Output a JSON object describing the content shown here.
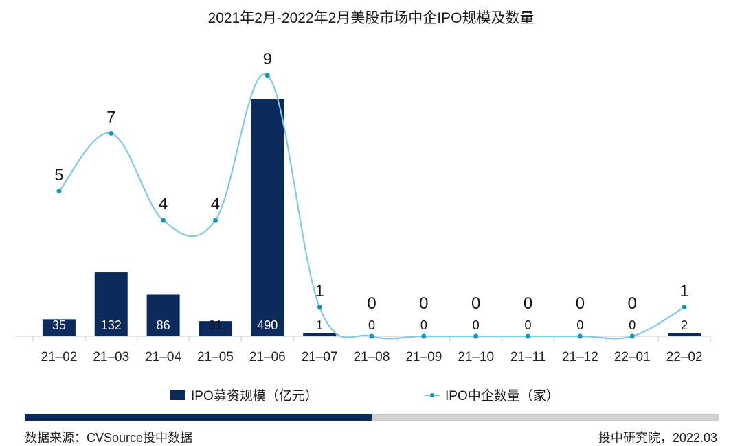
{
  "title": "2021年2月-2022年2月美股市场中企IPO规模及数量",
  "legend": {
    "bar_label": "IPO募资规模（亿元）",
    "line_label": "IPO中企数量（家）"
  },
  "footer": {
    "source": "数据来源：CVSource投中数据",
    "credit": "投中研究院，2022.03"
  },
  "progress": {
    "fill_percent": 50
  },
  "colors": {
    "bar": "#0b2a5c",
    "line": "#7fcbe0",
    "marker": "#1b95b5",
    "axis": "#d9d9d9",
    "progress_track": "#cfcfcf"
  },
  "chart_data": {
    "type": "bar",
    "title": "2021年2月-2022年2月美股市场中企IPO规模及数量",
    "categories": [
      "21-02",
      "21-03",
      "21-04",
      "21-05",
      "21-06",
      "21-07",
      "21-08",
      "21-09",
      "21-10",
      "21-11",
      "21-12",
      "22-01",
      "22-02"
    ],
    "series": [
      {
        "name": "IPO募资规模（亿元）",
        "type": "bar",
        "axis": "left",
        "values": [
          35,
          132,
          86,
          31,
          490,
          1,
          0,
          0,
          0,
          0,
          0,
          0,
          2
        ]
      },
      {
        "name": "IPO中企数量（家）",
        "type": "line",
        "smooth": true,
        "axis": "right",
        "values": [
          5,
          7,
          4,
          4,
          9,
          1,
          0,
          0,
          0,
          0,
          0,
          0,
          1
        ]
      }
    ],
    "xlabel": "",
    "ylabel": "",
    "grid": false,
    "legend_position": "bottom",
    "data_labels": true
  }
}
